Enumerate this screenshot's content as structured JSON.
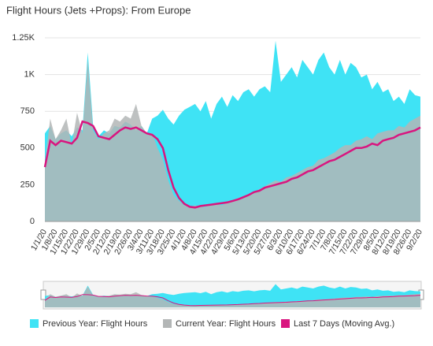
{
  "chart_data": {
    "type": "area",
    "title": "Flight Hours (Jets +Props): From Europe",
    "categories": [
      "1/1/20",
      null,
      "1/8/20",
      null,
      "1/15/20",
      null,
      "1/22/20",
      null,
      "1/29/20",
      null,
      "2/5/20",
      null,
      "2/12/20",
      null,
      "2/19/20",
      null,
      "2/26/20",
      null,
      "3/4/20",
      null,
      "3/11/20",
      null,
      "3/18/20",
      null,
      "3/25/20",
      null,
      "4/1/20",
      null,
      "4/8/20",
      null,
      "4/15/20",
      null,
      "4/22/20",
      null,
      "4/29/20",
      null,
      "5/6/20",
      null,
      "5/13/20",
      null,
      "5/20/20",
      null,
      "5/27/20",
      null,
      "6/3/20",
      null,
      "6/10/20",
      null,
      "6/17/20",
      null,
      "6/24/20",
      null,
      "7/1/20",
      null,
      "7/8/20",
      null,
      "7/15/20",
      null,
      "7/22/20",
      null,
      "7/29/20",
      null,
      "8/5/20",
      null,
      "8/12/20",
      null,
      "8/19/20",
      null,
      "8/26/20",
      null,
      "9/2/20"
    ],
    "series": [
      {
        "name": "Previous Year: Flight Hours",
        "color": "#3fe3f5",
        "values": [
          600,
          650,
          560,
          600,
          620,
          580,
          640,
          620,
          1150,
          650,
          580,
          620,
          600,
          650,
          640,
          680,
          660,
          620,
          650,
          600,
          700,
          720,
          760,
          700,
          660,
          720,
          760,
          780,
          800,
          750,
          820,
          700,
          800,
          850,
          780,
          860,
          820,
          880,
          900,
          850,
          900,
          920,
          880,
          1230,
          950,
          1000,
          1050,
          980,
          1100,
          1050,
          1000,
          1100,
          1150,
          1050,
          1000,
          1100,
          1000,
          1080,
          1050,
          980,
          1000,
          900,
          950,
          880,
          900,
          820,
          850,
          800,
          900,
          860,
          850
        ]
      },
      {
        "name": "Current Year: Flight Hours",
        "color": "#b3b6b6",
        "values": [
          400,
          700,
          560,
          620,
          700,
          520,
          740,
          600,
          1100,
          620,
          560,
          600,
          620,
          700,
          680,
          720,
          700,
          800,
          650,
          600,
          600,
          500,
          420,
          280,
          180,
          140,
          110,
          100,
          110,
          100,
          100,
          120,
          120,
          110,
          130,
          140,
          160,
          170,
          180,
          200,
          220,
          240,
          260,
          280,
          270,
          300,
          310,
          330,
          350,
          370,
          380,
          420,
          430,
          450,
          470,
          500,
          520,
          520,
          550,
          560,
          580,
          560,
          600,
          610,
          620,
          620,
          650,
          640,
          680,
          700,
          720
        ]
      },
      {
        "name": "Last 7 Days (Moving Avg.)",
        "color": "#d9157f",
        "values": [
          370,
          550,
          520,
          550,
          540,
          530,
          570,
          680,
          670,
          650,
          580,
          570,
          560,
          590,
          620,
          640,
          630,
          640,
          620,
          600,
          590,
          560,
          500,
          350,
          230,
          160,
          120,
          100,
          95,
          105,
          110,
          115,
          120,
          125,
          130,
          140,
          150,
          165,
          180,
          200,
          210,
          230,
          240,
          250,
          260,
          270,
          290,
          300,
          320,
          340,
          350,
          370,
          390,
          410,
          420,
          440,
          460,
          480,
          500,
          500,
          510,
          530,
          520,
          550,
          560,
          570,
          590,
          600,
          610,
          620,
          640
        ]
      }
    ],
    "ylim": [
      0,
      1250
    ],
    "yticks": [
      0,
      250,
      500,
      750,
      {
        "value": 1000,
        "label": "1K"
      },
      {
        "value": 1250,
        "label": "1.25K"
      }
    ],
    "grid": true
  }
}
